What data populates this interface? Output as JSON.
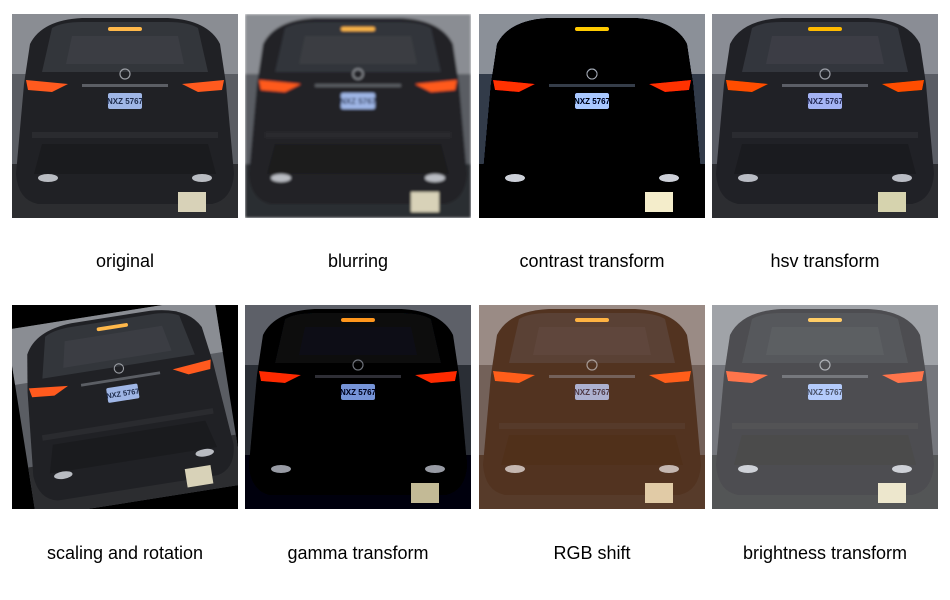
{
  "panels": [
    {
      "label": "original"
    },
    {
      "label": "blurring"
    },
    {
      "label": "contrast transform"
    },
    {
      "label": "hsv transform"
    },
    {
      "label": "scaling and rotation"
    },
    {
      "label": "gamma transform"
    },
    {
      "label": "RGB shift"
    },
    {
      "label": "brightness transform"
    }
  ],
  "plate_text": "NXZ 5767",
  "colors": {
    "background": "#ffffff",
    "taillight": "#ff5a1e",
    "brake_light": "#ffb84a",
    "plate": "#9fb6e6"
  }
}
